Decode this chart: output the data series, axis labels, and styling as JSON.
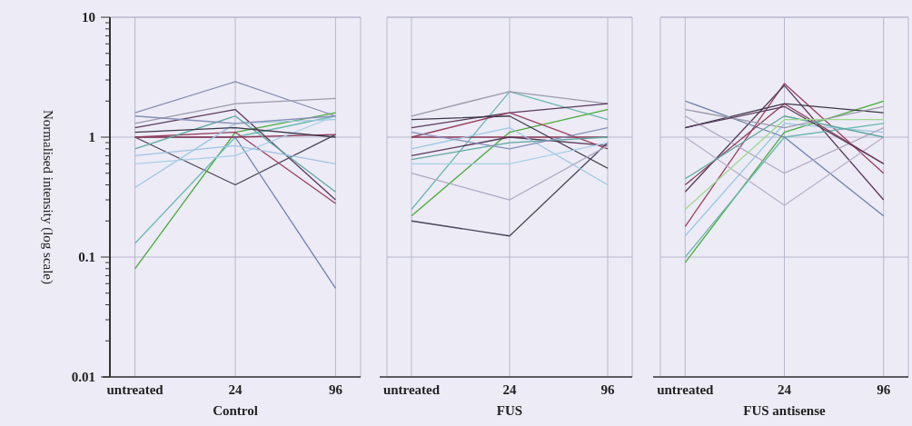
{
  "chart_data": [
    {
      "type": "line",
      "xlabel": "Control",
      "ylabel": "Normalised intensity (log scale)",
      "categories": [
        "untreated",
        "24",
        "96"
      ],
      "log": "y",
      "ylim": [
        0.01,
        10
      ],
      "yticks": [
        0.01,
        {
          "value": 0.02,
          "label": null
        },
        {
          "value": 0.03,
          "label": null
        },
        {
          "value": 0.04,
          "label": null
        },
        {
          "value": 0.05,
          "label": null
        },
        {
          "value": 0.06,
          "label": null
        },
        {
          "value": 0.07,
          "label": null
        },
        {
          "value": 0.08,
          "label": null
        },
        {
          "value": 0.09,
          "label": null
        },
        0.1,
        {
          "value": 0.2,
          "label": null
        },
        {
          "value": 0.3,
          "label": null
        },
        {
          "value": 0.4,
          "label": null
        },
        {
          "value": 0.5,
          "label": null
        },
        {
          "value": 0.6,
          "label": null
        },
        {
          "value": 0.7,
          "label": null
        },
        {
          "value": 0.8,
          "label": null
        },
        {
          "value": 0.9,
          "label": null
        },
        1,
        {
          "value": 2,
          "label": null
        },
        {
          "value": 3,
          "label": null
        },
        {
          "value": 4,
          "label": null
        },
        {
          "value": 5,
          "label": null
        },
        {
          "value": 6,
          "label": null
        },
        {
          "value": 7,
          "label": null
        },
        {
          "value": 8,
          "label": null
        },
        {
          "value": 9,
          "label": null
        },
        10
      ],
      "grid": true,
      "marker": "none",
      "series": [
        {
          "color": "#8a90b0",
          "values": [
            1.6,
            2.9,
            1.5
          ]
        },
        {
          "color": "#4a4458",
          "values": [
            1,
            0.4,
            1.05
          ]
        },
        {
          "color": "#4caa3c",
          "values": [
            0.08,
            1.1,
            1.6
          ]
        },
        {
          "color": "#6ab8b0",
          "values": [
            0.13,
            1.0,
            1.5
          ]
        },
        {
          "color": "#7080a8",
          "values": [
            1.0,
            1.0,
            0.055
          ]
        },
        {
          "color": "#5a3a5a",
          "values": [
            1.2,
            1.7,
            0.3
          ]
        },
        {
          "color": "#9a4060",
          "values": [
            1.0,
            1.1,
            0.28
          ]
        },
        {
          "color": "#8a3a58",
          "values": [
            1.0,
            1.0,
            1.05
          ]
        },
        {
          "color": "#9cc8e0",
          "values": [
            0.38,
            1.3,
            1.4
          ]
        },
        {
          "color": "#a8d0e8",
          "values": [
            0.6,
            0.7,
            1.5
          ]
        },
        {
          "color": "#9a9aaa",
          "values": [
            1.3,
            1.9,
            2.1
          ]
        },
        {
          "color": "#60a8a0",
          "values": [
            0.8,
            1.5,
            0.35
          ]
        },
        {
          "color": "#3e3848",
          "values": [
            1.1,
            1.2,
            1.0
          ]
        },
        {
          "color": "#a0c4e0",
          "values": [
            0.7,
            0.85,
            0.6
          ]
        },
        {
          "color": "#8890b8",
          "values": [
            1.5,
            1.3,
            1.5
          ]
        }
      ]
    },
    {
      "type": "line",
      "xlabel": "FUS",
      "categories": [
        "untreated",
        "24",
        "96"
      ],
      "log": "y",
      "ylim": [
        0.01,
        10
      ],
      "yticks": [
        0.01,
        0.1,
        1,
        10
      ],
      "tick_labels": "x",
      "grid": true,
      "marker": "none",
      "series": [
        {
          "color": "#4a4458",
          "values": [
            0.2,
            0.15,
            0.9
          ]
        },
        {
          "color": "#6ab8b0",
          "values": [
            0.25,
            2.4,
            1.4
          ]
        },
        {
          "color": "#4caa3c",
          "values": [
            0.22,
            1.1,
            1.7
          ]
        },
        {
          "color": "#9a9aaa",
          "values": [
            1.5,
            2.4,
            1.9
          ]
        },
        {
          "color": "#5a3a5a",
          "values": [
            1.2,
            1.6,
            1.9
          ]
        },
        {
          "color": "#9a4060",
          "values": [
            1.0,
            1.6,
            0.8
          ]
        },
        {
          "color": "#8a3a58",
          "values": [
            1.0,
            1.0,
            1.0
          ]
        },
        {
          "color": "#5a3a5a",
          "values": [
            0.7,
            1.0,
            0.85
          ]
        },
        {
          "color": "#3e3848",
          "values": [
            1.4,
            1.5,
            0.55
          ]
        },
        {
          "color": "#a8d0e8",
          "values": [
            0.6,
            0.6,
            0.9
          ]
        },
        {
          "color": "#b0a8c0",
          "values": [
            0.5,
            0.3,
            0.85
          ]
        },
        {
          "color": "#9cc8e0",
          "values": [
            0.8,
            1.2,
            0.4
          ]
        },
        {
          "color": "#60a8a0",
          "values": [
            0.65,
            0.9,
            1.0
          ]
        },
        {
          "color": "#8890b8",
          "values": [
            1.1,
            0.8,
            1.2
          ]
        }
      ]
    },
    {
      "type": "line",
      "xlabel": "FUS antisense",
      "categories": [
        "untreated",
        "24",
        "96"
      ],
      "log": "y",
      "ylim": [
        0.01,
        10
      ],
      "yticks": [
        0.01,
        0.1,
        1,
        10
      ],
      "tick_labels": "x",
      "grid": true,
      "marker": "none",
      "series": [
        {
          "color": "#9a4060",
          "values": [
            0.18,
            2.8,
            0.5
          ]
        },
        {
          "color": "#5a3a5a",
          "values": [
            0.35,
            2.7,
            0.3
          ]
        },
        {
          "color": "#4caa3c",
          "values": [
            0.09,
            1.1,
            2.0
          ]
        },
        {
          "color": "#6ab8b0",
          "values": [
            0.1,
            1.0,
            1.3
          ]
        },
        {
          "color": "#9cc8e0",
          "values": [
            0.15,
            1.3,
            1.1
          ]
        },
        {
          "color": "#3e3848",
          "values": [
            1.2,
            1.9,
            1.6
          ]
        },
        {
          "color": "#7080a8",
          "values": [
            2.0,
            1.0,
            0.22
          ]
        },
        {
          "color": "#b0a8c0",
          "values": [
            1.5,
            0.5,
            1.2
          ]
        },
        {
          "color": "#b8b0c8",
          "values": [
            1.0,
            0.27,
            1.0
          ]
        },
        {
          "color": "#8a3a58",
          "values": [
            0.4,
            1.9,
            0.6
          ]
        },
        {
          "color": "#60a8a0",
          "values": [
            0.45,
            1.5,
            1.0
          ]
        },
        {
          "color": "#9a9aaa",
          "values": [
            1.7,
            1.2,
            1.8
          ]
        },
        {
          "color": "#5a3a5a",
          "values": [
            1.2,
            1.8,
            0.6
          ]
        },
        {
          "color": "#a0d890",
          "values": [
            0.25,
            1.4,
            1.4
          ]
        }
      ]
    }
  ]
}
